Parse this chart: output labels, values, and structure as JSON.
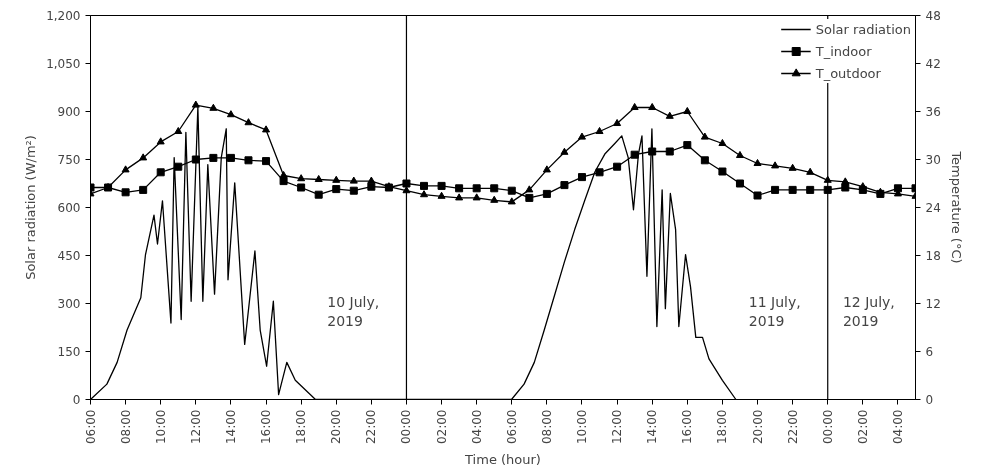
{
  "chart_data": {
    "type": "line",
    "xlabel": "Time (hour)",
    "ylabel": "Solar radiation (W/m²)",
    "y2label": "Temperature (°C)",
    "xlim": [
      "2019-07-10T06:00",
      "2019-07-12T05:00"
    ],
    "xticks": [
      {
        "value": "2019-07-10T06:00",
        "label": "06:00"
      },
      {
        "value": "2019-07-10T08:00",
        "label": "08:00"
      },
      {
        "value": "2019-07-10T10:00",
        "label": "10:00"
      },
      {
        "value": "2019-07-10T12:00",
        "label": "12:00"
      },
      {
        "value": "2019-07-10T14:00",
        "label": "14:00"
      },
      {
        "value": "2019-07-10T16:00",
        "label": "16:00"
      },
      {
        "value": "2019-07-10T18:00",
        "label": "18:00"
      },
      {
        "value": "2019-07-10T20:00",
        "label": "20:00"
      },
      {
        "value": "2019-07-10T22:00",
        "label": "22:00"
      },
      {
        "value": "2019-07-11T00:00",
        "label": "00:00"
      },
      {
        "value": "2019-07-11T02:00",
        "label": "02:00"
      },
      {
        "value": "2019-07-11T04:00",
        "label": "04:00"
      },
      {
        "value": "2019-07-11T06:00",
        "label": "06:00"
      },
      {
        "value": "2019-07-11T08:00",
        "label": "08:00"
      },
      {
        "value": "2019-07-11T10:00",
        "label": "10:00"
      },
      {
        "value": "2019-07-11T12:00",
        "label": "12:00"
      },
      {
        "value": "2019-07-11T14:00",
        "label": "14:00"
      },
      {
        "value": "2019-07-11T16:00",
        "label": "16:00"
      },
      {
        "value": "2019-07-11T18:00",
        "label": "18:00"
      },
      {
        "value": "2019-07-11T20:00",
        "label": "20:00"
      },
      {
        "value": "2019-07-11T22:00",
        "label": "22:00"
      },
      {
        "value": "2019-07-12T00:00",
        "label": "00:00"
      },
      {
        "value": "2019-07-12T02:00",
        "label": "02:00"
      },
      {
        "value": "2019-07-12T04:00",
        "label": "04:00"
      }
    ],
    "ylim": [
      0,
      1200
    ],
    "yticks": [
      0,
      150,
      300,
      450,
      600,
      750,
      900,
      {
        "value": 1050,
        "label": "1,050"
      },
      {
        "value": 1200,
        "label": "1,200"
      }
    ],
    "y2lim": [
      0,
      48
    ],
    "y2ticks": [
      0,
      6,
      12,
      18,
      24,
      30,
      36,
      42,
      48
    ],
    "grid": false,
    "legend": "top right",
    "series": [
      {
        "name": "Solar radiation",
        "color": "#000000",
        "marker": "none",
        "x": [
          "2019-07-10T06:00",
          "2019-07-10T06:56",
          "2019-07-10T07:31",
          "2019-07-10T08:05",
          "2019-07-10T08:52",
          "2019-07-10T09:08",
          "2019-07-10T09:37",
          "2019-07-10T09:49",
          "2019-07-10T10:06",
          "2019-07-10T10:35",
          "2019-07-10T10:46",
          "2019-07-10T11:10",
          "2019-07-10T11:26",
          "2019-07-10T11:44",
          "2019-07-10T12:07",
          "2019-07-10T12:24",
          "2019-07-10T12:41",
          "2019-07-10T13:04",
          "2019-07-10T13:27",
          "2019-07-10T13:44",
          "2019-07-10T13:50",
          "2019-07-10T14:13",
          "2019-07-10T14:47",
          "2019-07-10T15:22",
          "2019-07-10T15:40",
          "2019-07-10T16:02",
          "2019-07-10T16:25",
          "2019-07-10T16:43",
          "2019-07-10T17:11",
          "2019-07-10T17:40",
          "2019-07-10T18:49",
          "2019-07-11T05:59",
          "2019-07-11T06:42",
          "2019-07-11T07:17",
          "2019-07-11T07:51",
          "2019-07-11T08:26",
          "2019-07-11T09:00",
          "2019-07-11T09:35",
          "2019-07-11T10:09",
          "2019-07-11T10:44",
          "2019-07-11T11:18",
          "2019-07-11T11:53",
          "2019-07-11T12:16",
          "2019-07-11T12:38",
          "2019-07-11T12:56",
          "2019-07-11T13:13",
          "2019-07-11T13:25",
          "2019-07-11T13:42",
          "2019-07-11T13:59",
          "2019-07-11T14:16",
          "2019-07-11T14:34",
          "2019-07-11T14:45",
          "2019-07-11T15:02",
          "2019-07-11T15:20",
          "2019-07-11T15:31",
          "2019-07-11T15:54",
          "2019-07-11T16:11",
          "2019-07-11T16:29",
          "2019-07-11T16:52",
          "2019-07-11T17:14",
          "2019-07-11T18:00",
          "2019-07-11T18:46"
        ],
        "values": [
          0,
          48,
          116,
          217,
          318,
          453,
          576,
          486,
          621,
          239,
          756,
          250,
          835,
          307,
          913,
          307,
          734,
          329,
          756,
          846,
          374,
          677,
          172,
          464,
          217,
          104,
          307,
          15,
          116,
          60,
          0,
          0,
          48,
          116,
          217,
          325,
          430,
          531,
          621,
          711,
          767,
          801,
          824,
          756,
          593,
          767,
          824,
          385,
          846,
          228,
          655,
          284,
          644,
          531,
          228,
          453,
          352,
          194,
          194,
          127,
          60,
          0
        ]
      },
      {
        "name": "T_indoor",
        "color": "#000000",
        "axis": "y2",
        "marker": "square",
        "x": [
          "2019-07-10T06:00",
          "2019-07-10T07:00",
          "2019-07-10T08:00",
          "2019-07-10T09:00",
          "2019-07-10T10:00",
          "2019-07-10T11:00",
          "2019-07-10T12:00",
          "2019-07-10T13:00",
          "2019-07-10T14:00",
          "2019-07-10T15:00",
          "2019-07-10T16:00",
          "2019-07-10T17:00",
          "2019-07-10T18:00",
          "2019-07-10T19:00",
          "2019-07-10T20:00",
          "2019-07-10T21:00",
          "2019-07-10T22:00",
          "2019-07-10T23:00",
          "2019-07-11T00:00",
          "2019-07-11T01:00",
          "2019-07-11T02:00",
          "2019-07-11T03:00",
          "2019-07-11T04:00",
          "2019-07-11T05:00",
          "2019-07-11T06:00",
          "2019-07-11T07:00",
          "2019-07-11T08:00",
          "2019-07-11T09:00",
          "2019-07-11T10:00",
          "2019-07-11T11:00",
          "2019-07-11T12:00",
          "2019-07-11T13:00",
          "2019-07-11T14:00",
          "2019-07-11T15:00",
          "2019-07-11T16:00",
          "2019-07-11T17:00",
          "2019-07-11T18:00",
          "2019-07-11T19:00",
          "2019-07-11T20:00",
          "2019-07-11T21:00",
          "2019-07-11T22:00",
          "2019-07-11T23:00",
          "2019-07-12T00:00",
          "2019-07-12T01:00",
          "2019-07-12T02:00",
          "2019-07-12T03:00",
          "2019-07-12T04:00",
          "2019-07-12T05:00"
        ],
        "values": [
          26.5,
          26.5,
          25.9,
          26.2,
          28.4,
          29.1,
          30.0,
          30.2,
          30.2,
          29.9,
          29.8,
          27.3,
          26.5,
          25.6,
          26.3,
          26.1,
          26.6,
          26.5,
          27.0,
          26.7,
          26.7,
          26.4,
          26.4,
          26.4,
          26.1,
          25.2,
          25.7,
          26.8,
          27.8,
          28.4,
          29.1,
          30.6,
          31.0,
          31.0,
          31.8,
          29.9,
          28.5,
          27.0,
          25.5,
          26.2,
          26.2,
          26.2,
          26.2,
          26.5,
          26.2,
          25.7,
          26.4,
          26.4
        ]
      },
      {
        "name": "T_outdoor",
        "color": "#000000",
        "axis": "y2",
        "marker": "triangle",
        "x": [
          "2019-07-10T06:00",
          "2019-07-10T07:00",
          "2019-07-10T08:00",
          "2019-07-10T09:00",
          "2019-07-10T10:00",
          "2019-07-10T11:00",
          "2019-07-10T12:00",
          "2019-07-10T13:00",
          "2019-07-10T14:00",
          "2019-07-10T15:00",
          "2019-07-10T16:00",
          "2019-07-10T17:00",
          "2019-07-10T18:00",
          "2019-07-10T19:00",
          "2019-07-10T20:00",
          "2019-07-10T21:00",
          "2019-07-10T22:00",
          "2019-07-10T23:00",
          "2019-07-11T00:00",
          "2019-07-11T01:00",
          "2019-07-11T02:00",
          "2019-07-11T03:00",
          "2019-07-11T04:00",
          "2019-07-11T05:00",
          "2019-07-11T06:00",
          "2019-07-11T07:00",
          "2019-07-11T08:00",
          "2019-07-11T09:00",
          "2019-07-11T10:00",
          "2019-07-11T11:00",
          "2019-07-11T12:00",
          "2019-07-11T13:00",
          "2019-07-11T14:00",
          "2019-07-11T15:00",
          "2019-07-11T16:00",
          "2019-07-11T17:00",
          "2019-07-11T18:00",
          "2019-07-11T19:00",
          "2019-07-11T20:00",
          "2019-07-11T21:00",
          "2019-07-11T22:00",
          "2019-07-11T23:00",
          "2019-07-12T00:00",
          "2019-07-12T01:00",
          "2019-07-12T02:00",
          "2019-07-12T03:00",
          "2019-07-12T04:00",
          "2019-07-12T05:00"
        ],
        "values": [
          25.7,
          26.5,
          28.7,
          30.2,
          32.2,
          33.5,
          36.8,
          36.4,
          35.6,
          34.6,
          33.7,
          28.0,
          27.6,
          27.5,
          27.4,
          27.3,
          27.3,
          26.6,
          26.1,
          25.6,
          25.4,
          25.2,
          25.2,
          24.9,
          24.7,
          26.2,
          28.7,
          30.9,
          32.8,
          33.5,
          34.5,
          36.5,
          36.5,
          35.4,
          36.0,
          32.8,
          32.0,
          30.5,
          29.5,
          29.2,
          28.9,
          28.4,
          27.4,
          27.2,
          26.6,
          25.9,
          25.7,
          25.4
        ]
      }
    ],
    "ref_lines": [
      {
        "axis": "x",
        "value": "2019-07-11T00:00",
        "color": "#000000"
      },
      {
        "axis": "x",
        "value": "2019-07-12T00:00",
        "color": "#000000"
      }
    ],
    "annotations": [
      "10 July,\n2019",
      "11 July,\n2019",
      "12 July,\n2019"
    ]
  }
}
